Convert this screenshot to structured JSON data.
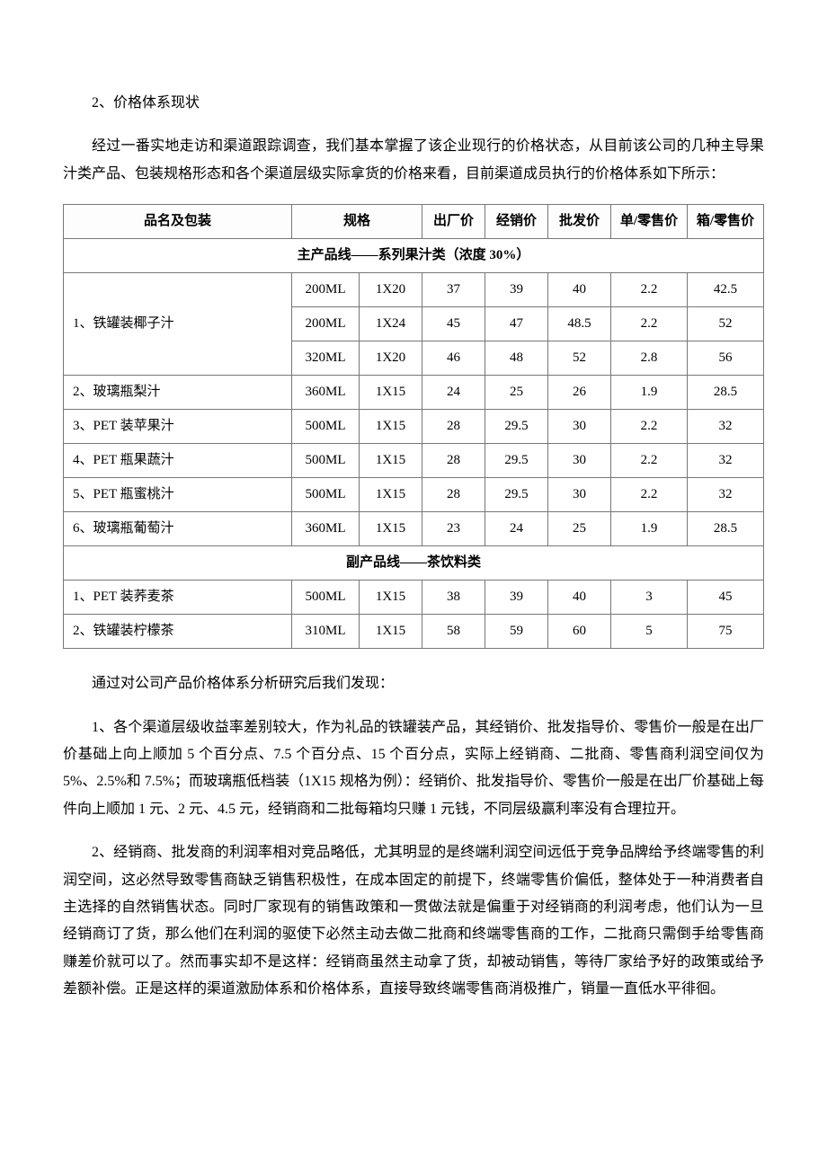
{
  "heading1": "2、价格体系现状",
  "intro": "经过一番实地走访和渠道跟踪调查，我们基本掌握了该企业现行的价格状态，从目前该公司的几种主导果汁类产品、包装规格形态和各个渠道层级实际拿货的价格来看，目前渠道成员执行的价格体系如下所示：",
  "table": {
    "headers": [
      "品名及包装",
      "规格",
      "出厂价",
      "经销价",
      "批发价",
      "单/零售价",
      "箱/零售价"
    ],
    "section1_title": "主产品线——系列果汁类（浓度 30%）",
    "section1_rows": [
      {
        "name": "1、铁罐装椰子汁",
        "rowspan": 3,
        "spec": "200ML",
        "pack": "1X20",
        "factory": "37",
        "dist": "39",
        "whole": "40",
        "unit": "2.2",
        "box": "42.5"
      },
      {
        "name": "",
        "spec": "200ML",
        "pack": "1X24",
        "factory": "45",
        "dist": "47",
        "whole": "48.5",
        "unit": "2.2",
        "box": "52"
      },
      {
        "name": "",
        "spec": "320ML",
        "pack": "1X20",
        "factory": "46",
        "dist": "48",
        "whole": "52",
        "unit": "2.8",
        "box": "56"
      },
      {
        "name": "2、玻璃瓶梨汁",
        "rowspan": 1,
        "spec": "360ML",
        "pack": "1X15",
        "factory": "24",
        "dist": "25",
        "whole": "26",
        "unit": "1.9",
        "box": "28.5"
      },
      {
        "name": "3、PET 装苹果汁",
        "rowspan": 1,
        "spec": "500ML",
        "pack": "1X15",
        "factory": "28",
        "dist": "29.5",
        "whole": "30",
        "unit": "2.2",
        "box": "32"
      },
      {
        "name": "4、PET 瓶果蔬汁",
        "rowspan": 1,
        "spec": "500ML",
        "pack": "1X15",
        "factory": "28",
        "dist": "29.5",
        "whole": "30",
        "unit": "2.2",
        "box": "32"
      },
      {
        "name": "5、PET 瓶蜜桃汁",
        "rowspan": 1,
        "spec": "500ML",
        "pack": "1X15",
        "factory": "28",
        "dist": "29.5",
        "whole": "30",
        "unit": "2.2",
        "box": "32"
      },
      {
        "name": "6、玻璃瓶葡萄汁",
        "rowspan": 1,
        "spec": "360ML",
        "pack": "1X15",
        "factory": "23",
        "dist": "24",
        "whole": "25",
        "unit": "1.9",
        "box": "28.5"
      }
    ],
    "section2_title": "副产品线——茶饮料类",
    "section2_rows": [
      {
        "name": "1、PET 装荞麦茶",
        "spec": "500ML",
        "pack": "1X15",
        "factory": "38",
        "dist": "39",
        "whole": "40",
        "unit": "3",
        "box": "45"
      },
      {
        "name": "2、铁罐装柠檬茶",
        "spec": "310ML",
        "pack": "1X15",
        "factory": "58",
        "dist": "59",
        "whole": "60",
        "unit": "5",
        "box": "75"
      }
    ]
  },
  "analysis_intro": "通过对公司产品价格体系分析研究后我们发现：",
  "finding1": "1、各个渠道层级收益率差别较大，作为礼品的铁罐装产品，其经销价、批发指导价、零售价一般是在出厂价基础上向上顺加 5 个百分点、7.5 个百分点、15 个百分点，实际上经销商、二批商、零售商利润空间仅为 5%、2.5%和 7.5%；而玻璃瓶低档装（1X15 规格为例）：经销价、批发指导价、零售价一般是在出厂价基础上每件向上顺加 1 元、2 元、4.5 元，经销商和二批每箱均只赚 1 元钱，不同层级赢利率没有合理拉开。",
  "finding2": "2、经销商、批发商的利润率相对竞品略低，尤其明显的是终端利润空间远低于竞争品牌给予终端零售的利润空间，这必然导致零售商缺乏销售积极性，在成本固定的前提下，终端零售价偏低，整体处于一种消费者自主选择的自然销售状态。同时厂家现有的销售政策和一贯做法就是偏重于对经销商的利润考虑，他们认为一旦经销商订了货，那么他们在利润的驱使下必然主动去做二批商和终端零售商的工作，二批商只需倒手给零售商赚差价就可以了。然而事实却不是这样：经销商虽然主动拿了货，却被动销售，等待厂家给予好的政策或给予差额补偿。正是这样的渠道激励体系和价格体系，直接导致终端零售商消极推广，销量一直低水平徘徊。"
}
